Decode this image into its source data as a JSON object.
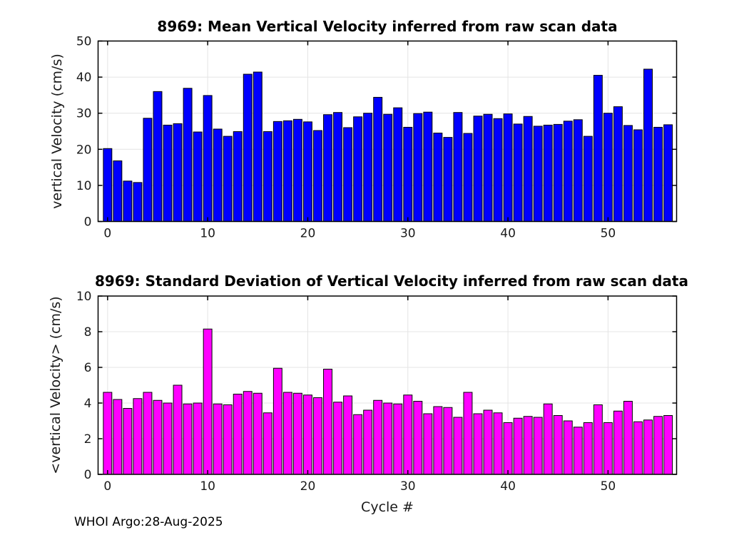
{
  "figure": {
    "background": "#FFFFFF"
  },
  "footer": {
    "text": "WHOI Argo:28-Aug-2025"
  },
  "style": {
    "grid_color": "#E4E4E4",
    "frame_color": "#000000",
    "tick_label_color": "#1A1A1A",
    "tick_label_size": 17
  },
  "chart_data": [
    {
      "type": "bar",
      "title": "8969: Mean Vertical Velocity inferred from raw scan data",
      "xlabel": "",
      "ylabel": "vertical Velocity (cm/s)",
      "bar_color": "#0000FF",
      "bar_edge_color": "#000000",
      "grid": true,
      "xlim": [
        -0.95,
        56.85
      ],
      "ylim": [
        0,
        50
      ],
      "xticks": [
        0,
        10,
        20,
        30,
        40,
        50
      ],
      "yticks": [
        0,
        10,
        20,
        30,
        40,
        50
      ],
      "x": [
        0,
        1,
        2,
        3,
        4,
        5,
        6,
        7,
        8,
        9,
        10,
        11,
        12,
        13,
        14,
        15,
        16,
        17,
        18,
        19,
        20,
        21,
        22,
        23,
        24,
        25,
        26,
        27,
        28,
        29,
        30,
        31,
        32,
        33,
        34,
        35,
        36,
        37,
        38,
        39,
        40,
        41,
        42,
        43,
        44,
        45,
        46,
        47,
        48,
        49,
        50,
        51,
        52,
        53,
        54,
        55,
        56
      ],
      "values": [
        20.2,
        16.8,
        11.2,
        10.8,
        28.6,
        36.0,
        26.7,
        27.1,
        36.9,
        24.8,
        34.9,
        25.6,
        23.6,
        24.9,
        40.8,
        41.4,
        24.9,
        27.7,
        27.9,
        28.3,
        27.6,
        25.2,
        29.6,
        30.2,
        26.0,
        29.0,
        30.0,
        34.4,
        29.7,
        31.5,
        26.1,
        29.9,
        30.3,
        24.5,
        23.3,
        30.2,
        24.4,
        29.2,
        29.7,
        28.5,
        29.8,
        27.0,
        29.1,
        26.4,
        26.7,
        26.9,
        27.8,
        28.2,
        23.6,
        40.5,
        30.0,
        31.8,
        26.6,
        25.4,
        42.2,
        26.1,
        26.8
      ]
    },
    {
      "type": "bar",
      "title": "8969: Standard Deviation of Vertical Velocity inferred from raw scan data",
      "xlabel": "Cycle #",
      "ylabel": "<vertical Velocity> (cm/s)",
      "bar_color": "#FF00FF",
      "bar_edge_color": "#000000",
      "grid": true,
      "xlim": [
        -0.95,
        56.85
      ],
      "ylim": [
        0,
        10
      ],
      "xticks": [
        0,
        10,
        20,
        30,
        40,
        50
      ],
      "yticks": [
        0,
        2,
        4,
        6,
        8,
        10
      ],
      "x": [
        0,
        1,
        2,
        3,
        4,
        5,
        6,
        7,
        8,
        9,
        10,
        11,
        12,
        13,
        14,
        15,
        16,
        17,
        18,
        19,
        20,
        21,
        22,
        23,
        24,
        25,
        26,
        27,
        28,
        29,
        30,
        31,
        32,
        33,
        34,
        35,
        36,
        37,
        38,
        39,
        40,
        41,
        42,
        43,
        44,
        45,
        46,
        47,
        48,
        49,
        50,
        51,
        52,
        53,
        54,
        55,
        56
      ],
      "values": [
        4.6,
        4.2,
        3.7,
        4.25,
        4.6,
        4.15,
        4.0,
        5.0,
        3.95,
        4.0,
        8.15,
        3.95,
        3.9,
        4.5,
        4.65,
        4.55,
        3.45,
        5.95,
        4.6,
        4.55,
        4.45,
        4.3,
        5.9,
        4.05,
        4.4,
        3.35,
        3.6,
        4.15,
        4.0,
        3.95,
        4.45,
        4.1,
        3.4,
        3.8,
        3.75,
        3.2,
        4.6,
        3.4,
        3.6,
        3.45,
        2.9,
        3.15,
        3.25,
        3.2,
        3.95,
        3.3,
        3.0,
        2.65,
        2.9,
        3.9,
        2.9,
        3.55,
        4.1,
        2.95,
        3.05,
        3.25,
        3.3
      ]
    }
  ]
}
